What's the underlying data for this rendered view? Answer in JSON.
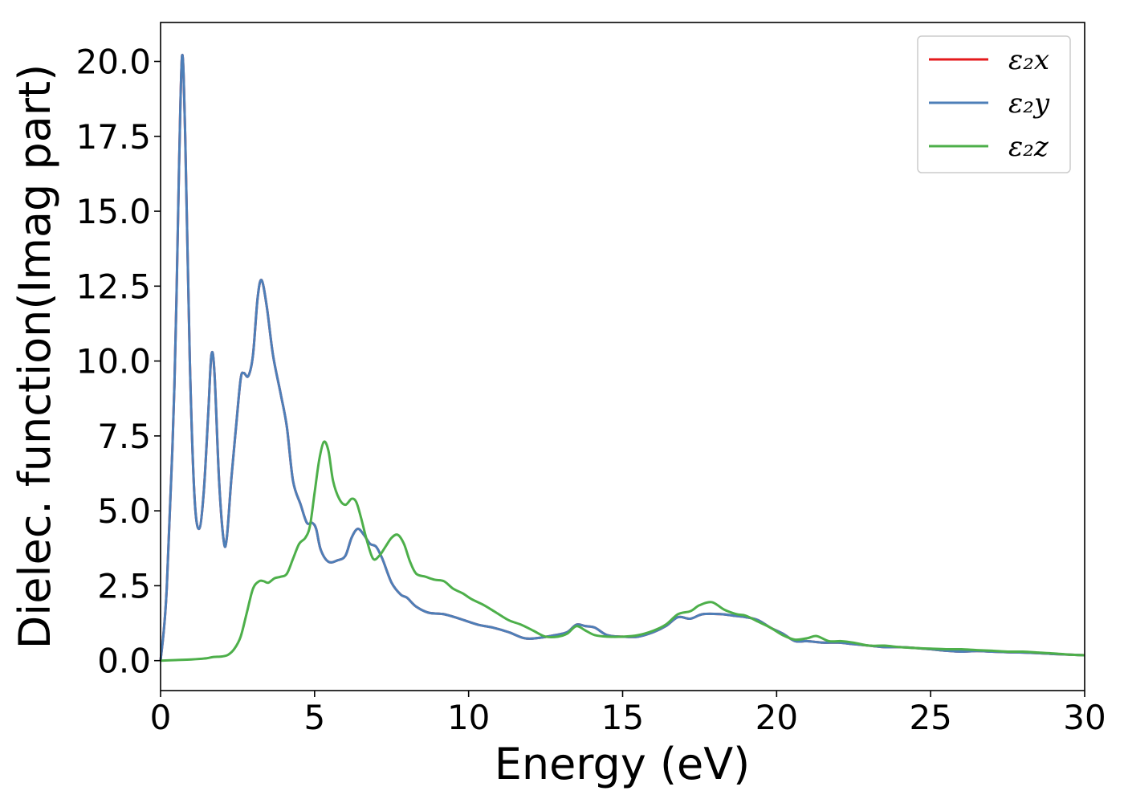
{
  "chart_data": {
    "type": "line",
    "title": "",
    "xlabel": "Energy (eV)",
    "ylabel": "Dielec. function(Imag part)",
    "xlim": [
      0,
      30
    ],
    "ylim": [
      -1.0,
      21.3
    ],
    "xticks": [
      0,
      5,
      10,
      15,
      20,
      25,
      30
    ],
    "xtick_labels": [
      "0",
      "5",
      "10",
      "15",
      "20",
      "25",
      "30"
    ],
    "yticks": [
      0.0,
      2.5,
      5.0,
      7.5,
      10.0,
      12.5,
      15.0,
      17.5,
      20.0
    ],
    "ytick_labels": [
      "0.0",
      "2.5",
      "5.0",
      "7.5",
      "10.0",
      "12.5",
      "15.0",
      "17.5",
      "20.0"
    ],
    "grid": false,
    "legend_position": "top-right",
    "series": [
      {
        "name": "ε₂x",
        "color": "#e41a1c",
        "points": [
          [
            0,
            0
          ],
          [
            0.2,
            2.4
          ],
          [
            0.45,
            9.2
          ],
          [
            0.6,
            16.5
          ],
          [
            0.7,
            20.2
          ],
          [
            0.8,
            17.5
          ],
          [
            0.95,
            10.0
          ],
          [
            1.1,
            5.5
          ],
          [
            1.25,
            4.4
          ],
          [
            1.4,
            5.6
          ],
          [
            1.55,
            8.3
          ],
          [
            1.65,
            10.2
          ],
          [
            1.75,
            9.6
          ],
          [
            1.9,
            6.0
          ],
          [
            2.05,
            4.0
          ],
          [
            2.15,
            4.1
          ],
          [
            2.3,
            6.1
          ],
          [
            2.45,
            7.8
          ],
          [
            2.6,
            9.4
          ],
          [
            2.7,
            9.6
          ],
          [
            2.85,
            9.5
          ],
          [
            3.0,
            10.2
          ],
          [
            3.15,
            12.1
          ],
          [
            3.28,
            12.7
          ],
          [
            3.45,
            11.8
          ],
          [
            3.65,
            10.2
          ],
          [
            3.9,
            8.9
          ],
          [
            4.1,
            7.8
          ],
          [
            4.3,
            6.0
          ],
          [
            4.55,
            5.2
          ],
          [
            4.75,
            4.6
          ],
          [
            4.92,
            4.6
          ],
          [
            5.05,
            4.4
          ],
          [
            5.2,
            3.7
          ],
          [
            5.45,
            3.3
          ],
          [
            5.75,
            3.35
          ],
          [
            6.0,
            3.5
          ],
          [
            6.2,
            4.1
          ],
          [
            6.4,
            4.4
          ],
          [
            6.6,
            4.2
          ],
          [
            6.8,
            3.9
          ],
          [
            7.0,
            3.8
          ],
          [
            7.2,
            3.4
          ],
          [
            7.5,
            2.6
          ],
          [
            7.8,
            2.2
          ],
          [
            8.0,
            2.1
          ],
          [
            8.3,
            1.8
          ],
          [
            8.7,
            1.6
          ],
          [
            9.2,
            1.55
          ],
          [
            9.7,
            1.4
          ],
          [
            10.3,
            1.2
          ],
          [
            10.8,
            1.1
          ],
          [
            11.3,
            0.95
          ],
          [
            11.8,
            0.75
          ],
          [
            12.2,
            0.75
          ],
          [
            12.8,
            0.85
          ],
          [
            13.2,
            0.95
          ],
          [
            13.5,
            1.2
          ],
          [
            13.8,
            1.15
          ],
          [
            14.1,
            1.1
          ],
          [
            14.5,
            0.85
          ],
          [
            15.0,
            0.8
          ],
          [
            15.5,
            0.8
          ],
          [
            16.0,
            0.95
          ],
          [
            16.4,
            1.15
          ],
          [
            16.8,
            1.45
          ],
          [
            17.2,
            1.4
          ],
          [
            17.6,
            1.55
          ],
          [
            18.2,
            1.55
          ],
          [
            18.6,
            1.5
          ],
          [
            19.0,
            1.45
          ],
          [
            19.4,
            1.35
          ],
          [
            19.8,
            1.1
          ],
          [
            20.2,
            0.9
          ],
          [
            20.6,
            0.65
          ],
          [
            21.0,
            0.65
          ],
          [
            21.5,
            0.6
          ],
          [
            22.0,
            0.6
          ],
          [
            22.5,
            0.55
          ],
          [
            23.0,
            0.5
          ],
          [
            23.5,
            0.45
          ],
          [
            24.0,
            0.45
          ],
          [
            24.5,
            0.42
          ],
          [
            25.0,
            0.38
          ],
          [
            25.5,
            0.33
          ],
          [
            26.0,
            0.3
          ],
          [
            26.5,
            0.32
          ],
          [
            27.0,
            0.3
          ],
          [
            27.5,
            0.28
          ],
          [
            28.0,
            0.27
          ],
          [
            28.5,
            0.25
          ],
          [
            29.0,
            0.22
          ],
          [
            29.5,
            0.2
          ],
          [
            30.0,
            0.18
          ]
        ]
      },
      {
        "name": "ε₂y",
        "color": "#4d7fb8",
        "points": [
          [
            0,
            0
          ],
          [
            0.2,
            2.4
          ],
          [
            0.45,
            9.2
          ],
          [
            0.6,
            16.5
          ],
          [
            0.7,
            20.2
          ],
          [
            0.8,
            17.5
          ],
          [
            0.95,
            10.0
          ],
          [
            1.1,
            5.5
          ],
          [
            1.25,
            4.4
          ],
          [
            1.4,
            5.6
          ],
          [
            1.55,
            8.3
          ],
          [
            1.65,
            10.2
          ],
          [
            1.75,
            9.6
          ],
          [
            1.9,
            6.0
          ],
          [
            2.05,
            4.0
          ],
          [
            2.15,
            4.1
          ],
          [
            2.3,
            6.1
          ],
          [
            2.45,
            7.8
          ],
          [
            2.6,
            9.4
          ],
          [
            2.7,
            9.6
          ],
          [
            2.85,
            9.5
          ],
          [
            3.0,
            10.2
          ],
          [
            3.15,
            12.1
          ],
          [
            3.28,
            12.7
          ],
          [
            3.45,
            11.8
          ],
          [
            3.65,
            10.2
          ],
          [
            3.9,
            8.9
          ],
          [
            4.1,
            7.8
          ],
          [
            4.3,
            6.0
          ],
          [
            4.55,
            5.2
          ],
          [
            4.75,
            4.6
          ],
          [
            4.92,
            4.6
          ],
          [
            5.05,
            4.4
          ],
          [
            5.2,
            3.7
          ],
          [
            5.45,
            3.3
          ],
          [
            5.75,
            3.35
          ],
          [
            6.0,
            3.5
          ],
          [
            6.2,
            4.1
          ],
          [
            6.4,
            4.4
          ],
          [
            6.6,
            4.2
          ],
          [
            6.8,
            3.9
          ],
          [
            7.0,
            3.8
          ],
          [
            7.2,
            3.4
          ],
          [
            7.5,
            2.6
          ],
          [
            7.8,
            2.2
          ],
          [
            8.0,
            2.1
          ],
          [
            8.3,
            1.8
          ],
          [
            8.7,
            1.6
          ],
          [
            9.2,
            1.55
          ],
          [
            9.7,
            1.4
          ],
          [
            10.3,
            1.2
          ],
          [
            10.8,
            1.1
          ],
          [
            11.3,
            0.95
          ],
          [
            11.8,
            0.75
          ],
          [
            12.2,
            0.75
          ],
          [
            12.8,
            0.85
          ],
          [
            13.2,
            0.95
          ],
          [
            13.5,
            1.2
          ],
          [
            13.8,
            1.15
          ],
          [
            14.1,
            1.1
          ],
          [
            14.5,
            0.85
          ],
          [
            15.0,
            0.8
          ],
          [
            15.5,
            0.8
          ],
          [
            16.0,
            0.95
          ],
          [
            16.4,
            1.15
          ],
          [
            16.8,
            1.45
          ],
          [
            17.2,
            1.4
          ],
          [
            17.6,
            1.55
          ],
          [
            18.2,
            1.55
          ],
          [
            18.6,
            1.5
          ],
          [
            19.0,
            1.45
          ],
          [
            19.4,
            1.35
          ],
          [
            19.8,
            1.1
          ],
          [
            20.2,
            0.9
          ],
          [
            20.6,
            0.65
          ],
          [
            21.0,
            0.65
          ],
          [
            21.5,
            0.6
          ],
          [
            22.0,
            0.6
          ],
          [
            22.5,
            0.55
          ],
          [
            23.0,
            0.5
          ],
          [
            23.5,
            0.45
          ],
          [
            24.0,
            0.45
          ],
          [
            24.5,
            0.42
          ],
          [
            25.0,
            0.38
          ],
          [
            25.5,
            0.33
          ],
          [
            26.0,
            0.3
          ],
          [
            26.5,
            0.32
          ],
          [
            27.0,
            0.3
          ],
          [
            27.5,
            0.28
          ],
          [
            28.0,
            0.27
          ],
          [
            28.5,
            0.25
          ],
          [
            29.0,
            0.22
          ],
          [
            29.5,
            0.2
          ],
          [
            30.0,
            0.18
          ]
        ]
      },
      {
        "name": "ε₂z",
        "color": "#4daf4a",
        "points": [
          [
            0,
            0
          ],
          [
            0.5,
            0.02
          ],
          [
            1.0,
            0.04
          ],
          [
            1.5,
            0.08
          ],
          [
            1.7,
            0.12
          ],
          [
            2.0,
            0.14
          ],
          [
            2.2,
            0.2
          ],
          [
            2.4,
            0.4
          ],
          [
            2.6,
            0.8
          ],
          [
            2.8,
            1.6
          ],
          [
            3.0,
            2.4
          ],
          [
            3.2,
            2.65
          ],
          [
            3.35,
            2.65
          ],
          [
            3.5,
            2.6
          ],
          [
            3.7,
            2.75
          ],
          [
            3.9,
            2.8
          ],
          [
            4.1,
            2.9
          ],
          [
            4.3,
            3.4
          ],
          [
            4.5,
            3.9
          ],
          [
            4.7,
            4.1
          ],
          [
            4.85,
            4.5
          ],
          [
            5.0,
            5.6
          ],
          [
            5.15,
            6.7
          ],
          [
            5.3,
            7.3
          ],
          [
            5.45,
            7.0
          ],
          [
            5.6,
            6.0
          ],
          [
            5.8,
            5.4
          ],
          [
            6.0,
            5.2
          ],
          [
            6.2,
            5.4
          ],
          [
            6.35,
            5.3
          ],
          [
            6.5,
            4.8
          ],
          [
            6.7,
            4.0
          ],
          [
            6.9,
            3.4
          ],
          [
            7.1,
            3.5
          ],
          [
            7.3,
            3.8
          ],
          [
            7.5,
            4.1
          ],
          [
            7.7,
            4.2
          ],
          [
            7.9,
            3.9
          ],
          [
            8.1,
            3.3
          ],
          [
            8.3,
            2.9
          ],
          [
            8.6,
            2.8
          ],
          [
            8.9,
            2.7
          ],
          [
            9.2,
            2.65
          ],
          [
            9.5,
            2.4
          ],
          [
            9.8,
            2.25
          ],
          [
            10.1,
            2.05
          ],
          [
            10.5,
            1.85
          ],
          [
            10.9,
            1.6
          ],
          [
            11.3,
            1.35
          ],
          [
            11.7,
            1.2
          ],
          [
            12.1,
            1.0
          ],
          [
            12.5,
            0.8
          ],
          [
            12.9,
            0.8
          ],
          [
            13.2,
            0.9
          ],
          [
            13.5,
            1.15
          ],
          [
            13.8,
            1.0
          ],
          [
            14.1,
            0.85
          ],
          [
            14.5,
            0.8
          ],
          [
            15.0,
            0.8
          ],
          [
            15.5,
            0.85
          ],
          [
            16.0,
            1.0
          ],
          [
            16.4,
            1.2
          ],
          [
            16.8,
            1.55
          ],
          [
            17.2,
            1.65
          ],
          [
            17.5,
            1.85
          ],
          [
            17.9,
            1.95
          ],
          [
            18.3,
            1.7
          ],
          [
            18.7,
            1.55
          ],
          [
            19.0,
            1.5
          ],
          [
            19.4,
            1.3
          ],
          [
            19.8,
            1.1
          ],
          [
            20.2,
            0.85
          ],
          [
            20.6,
            0.7
          ],
          [
            21.0,
            0.75
          ],
          [
            21.3,
            0.82
          ],
          [
            21.7,
            0.65
          ],
          [
            22.1,
            0.65
          ],
          [
            22.5,
            0.6
          ],
          [
            23.0,
            0.5
          ],
          [
            23.5,
            0.5
          ],
          [
            24.0,
            0.45
          ],
          [
            24.5,
            0.42
          ],
          [
            25.0,
            0.4
          ],
          [
            25.5,
            0.38
          ],
          [
            26.0,
            0.38
          ],
          [
            26.5,
            0.35
          ],
          [
            27.0,
            0.33
          ],
          [
            27.5,
            0.3
          ],
          [
            28.0,
            0.3
          ],
          [
            28.5,
            0.27
          ],
          [
            29.0,
            0.24
          ],
          [
            29.5,
            0.2
          ],
          [
            30.0,
            0.18
          ]
        ]
      }
    ]
  }
}
